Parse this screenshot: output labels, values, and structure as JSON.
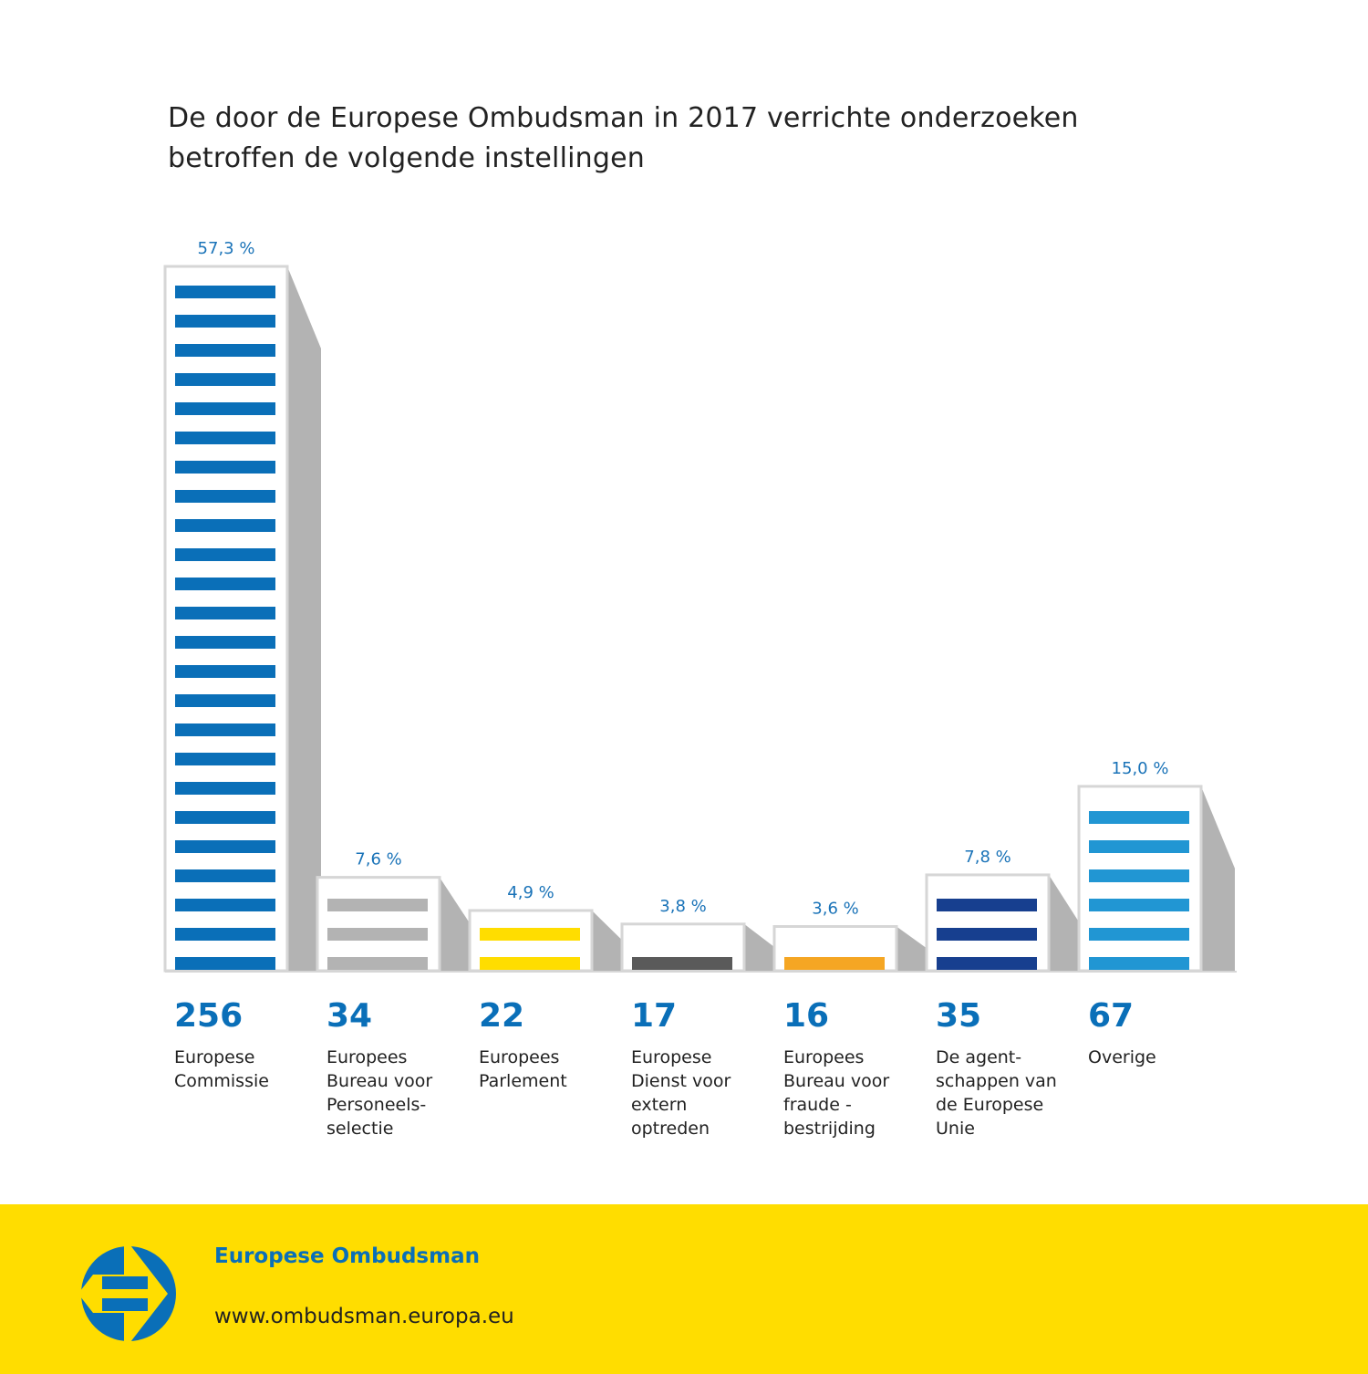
{
  "chart_data": {
    "type": "bar",
    "title": "De door de Europese Ombudsman in 2017 verrichte onderzoeken betroffen de volgende instellingen",
    "title_lines": [
      "De door de Europese Ombudsman in 2017 verrichte onderzoeken",
      "betroffen de volgende instellingen"
    ],
    "xlabel": "",
    "ylabel": "",
    "grid": false,
    "legend": "none",
    "categories": [
      "Europese Commissie",
      "Europees Bureau voor Personeelsselectie",
      "Europees Parlement",
      "Europese Dienst voor extern optreden",
      "Europees Bureau voor fraudebestrijding",
      "De agentschappen van de Europese Unie",
      "Overige"
    ],
    "category_labels": [
      "Europese\nCommissie",
      "Europees\nBureau voor\nPersoneels-\nselectie",
      "Europees\nParlement",
      "Europese\nDienst voor\nextern\noptreden",
      "Europees\nBureau voor\nfraude  -\nbestrijding",
      "De agent-\nschappen van\nde Europese\nUnie",
      "Overige"
    ],
    "values": [
      256,
      34,
      22,
      17,
      16,
      35,
      67
    ],
    "count_labels": [
      "256",
      "34",
      "22",
      "17",
      "16",
      "35",
      "67"
    ],
    "percent_values": [
      57.3,
      7.6,
      4.9,
      3.8,
      3.6,
      7.8,
      15.0
    ],
    "percent_labels": [
      "57,3 %",
      "7,6 %",
      "4,9 %",
      "3,8 %",
      "3,6 %",
      "7,8 %",
      "15,0 %"
    ],
    "stripe_colors": [
      "#0a6fb8",
      "#b3b3b3",
      "#ffdd00",
      "#5a5a5a",
      "#f5a623",
      "#173f8f",
      "#2196d3"
    ],
    "ylim": [
      0,
      60
    ]
  },
  "footer": {
    "organization": "Europese Ombudsman",
    "url": "www.ombudsman.europa.eu",
    "logo_icon": "european-ombudsman-logo-icon"
  },
  "colors": {
    "brand_blue": "#0a6fb8",
    "brand_yellow": "#ffdd00",
    "shade_gray": "#b3b3b3",
    "outline_gray": "#d6d6d6"
  }
}
